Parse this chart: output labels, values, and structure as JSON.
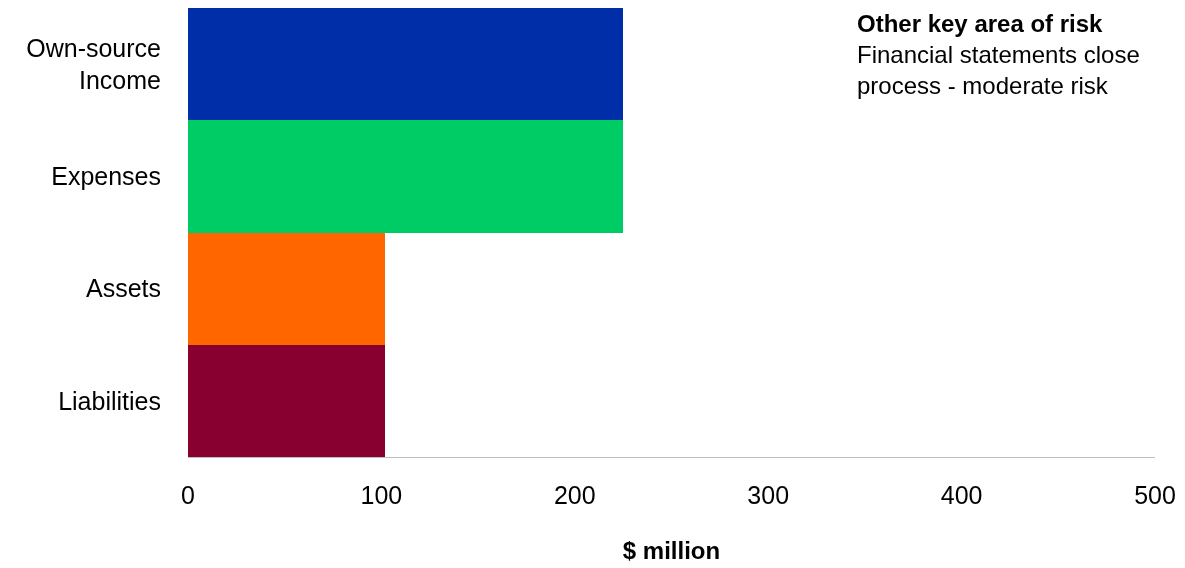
{
  "chart_data": {
    "type": "bar",
    "orientation": "horizontal",
    "categories": [
      "Own-source Income",
      "Expenses",
      "Assets",
      "Liabilities"
    ],
    "values": [
      225,
      225,
      102,
      102
    ],
    "colors": [
      "#002da8",
      "#00cc66",
      "#ff6600",
      "#880030"
    ],
    "xlabel": "$ million",
    "xlim": [
      0,
      500
    ],
    "xticks": [
      0,
      100,
      200,
      300,
      400,
      500
    ],
    "annotations": [
      "Other key area of risk",
      "Financial statements close process - moderate risk"
    ]
  }
}
